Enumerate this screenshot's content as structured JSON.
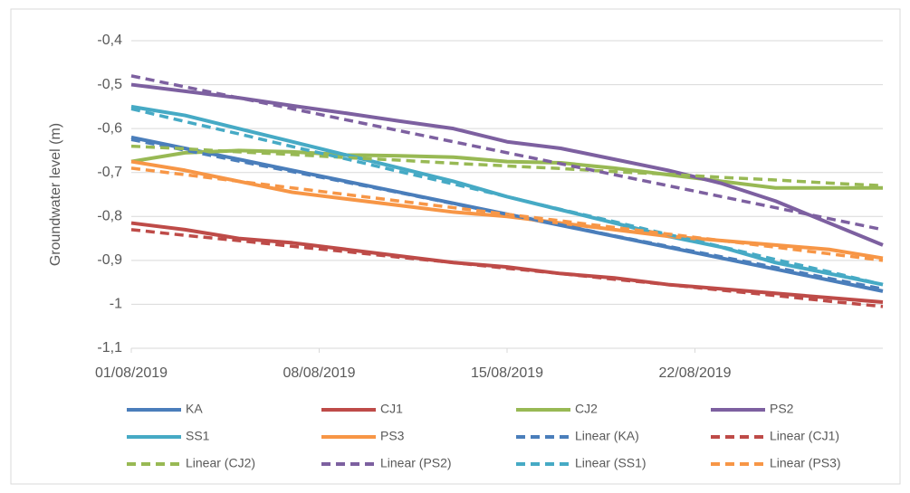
{
  "chart_data": {
    "type": "line",
    "y_label": "Groundwater level (m)",
    "x": [
      "2019-08-01",
      "2019-08-03",
      "2019-08-05",
      "2019-08-07",
      "2019-08-09",
      "2019-08-11",
      "2019-08-13",
      "2019-08-15",
      "2019-08-17",
      "2019-08-19",
      "2019-08-21",
      "2019-08-23",
      "2019-08-25",
      "2019-08-27",
      "2019-08-29"
    ],
    "xlim": [
      "2019-08-01",
      "2019-08-29"
    ],
    "xticks": [
      {
        "value": "2019-08-01",
        "label": "01/08/2019"
      },
      {
        "value": "2019-08-08",
        "label": "08/08/2019"
      },
      {
        "value": "2019-08-15",
        "label": "15/08/2019"
      },
      {
        "value": "2019-08-22",
        "label": "22/08/2019"
      }
    ],
    "ylim": [
      -1.1,
      -0.4
    ],
    "yticks": [
      {
        "value": -0.4,
        "label": "-0,4"
      },
      {
        "value": -0.5,
        "label": "-0,5"
      },
      {
        "value": -0.6,
        "label": "-0,6"
      },
      {
        "value": -0.7,
        "label": "-0,7"
      },
      {
        "value": -0.8,
        "label": "-0,8"
      },
      {
        "value": -0.9,
        "label": "-0,9"
      },
      -1,
      {
        "value": -1.1,
        "label": "-1,1"
      }
    ],
    "grid": true,
    "legend": "bottom",
    "series": [
      {
        "name": "KA",
        "color": "#4a7ebb",
        "dashed": false,
        "values": [
          -0.62,
          -0.645,
          -0.67,
          -0.695,
          -0.72,
          -0.745,
          -0.77,
          -0.795,
          -0.82,
          -0.845,
          -0.87,
          -0.895,
          -0.92,
          -0.945,
          -0.97
        ]
      },
      {
        "name": "CJ1",
        "color": "#be4b48",
        "dashed": false,
        "values": [
          -0.815,
          -0.83,
          -0.85,
          -0.86,
          -0.875,
          -0.89,
          -0.905,
          -0.915,
          -0.93,
          -0.94,
          -0.955,
          -0.965,
          -0.975,
          -0.985,
          -0.995
        ]
      },
      {
        "name": "CJ2",
        "color": "#98b954",
        "dashed": false,
        "values": [
          -0.675,
          -0.655,
          -0.65,
          -0.653,
          -0.66,
          -0.662,
          -0.665,
          -0.675,
          -0.678,
          -0.69,
          -0.705,
          -0.72,
          -0.735,
          -0.735,
          -0.735
        ]
      },
      {
        "name": "PS2",
        "color": "#7d60a0",
        "dashed": false,
        "values": [
          -0.5,
          -0.515,
          -0.53,
          -0.548,
          -0.565,
          -0.583,
          -0.6,
          -0.63,
          -0.645,
          -0.67,
          -0.695,
          -0.725,
          -0.765,
          -0.815,
          -0.865
        ]
      },
      {
        "name": "SS1",
        "color": "#46aac5",
        "dashed": false,
        "values": [
          -0.55,
          -0.57,
          -0.6,
          -0.63,
          -0.66,
          -0.69,
          -0.72,
          -0.755,
          -0.785,
          -0.815,
          -0.845,
          -0.87,
          -0.905,
          -0.93,
          -0.955
        ]
      },
      {
        "name": "PS3",
        "color": "#f79646",
        "dashed": false,
        "values": [
          -0.675,
          -0.695,
          -0.72,
          -0.745,
          -0.76,
          -0.775,
          -0.79,
          -0.8,
          -0.815,
          -0.83,
          -0.845,
          -0.855,
          -0.865,
          -0.875,
          -0.895
        ]
      },
      {
        "name": "Linear (KA)",
        "color": "#4a7ebb",
        "dashed": true,
        "values": [
          -0.625,
          -0.649,
          -0.674,
          -0.698,
          -0.722,
          -0.746,
          -0.771,
          -0.795,
          -0.819,
          -0.844,
          -0.868,
          -0.892,
          -0.916,
          -0.941,
          -0.965
        ]
      },
      {
        "name": "Linear (CJ1)",
        "color": "#be4b48",
        "dashed": true,
        "values": [
          -0.83,
          -0.843,
          -0.855,
          -0.868,
          -0.88,
          -0.893,
          -0.905,
          -0.918,
          -0.93,
          -0.943,
          -0.955,
          -0.968,
          -0.98,
          -0.993,
          -1.005
        ]
      },
      {
        "name": "Linear (CJ2)",
        "color": "#98b954",
        "dashed": true,
        "values": [
          -0.64,
          -0.646,
          -0.653,
          -0.659,
          -0.666,
          -0.672,
          -0.679,
          -0.685,
          -0.691,
          -0.698,
          -0.704,
          -0.711,
          -0.717,
          -0.724,
          -0.73
        ]
      },
      {
        "name": "Linear (PS2)",
        "color": "#7d60a0",
        "dashed": true,
        "values": [
          -0.48,
          -0.505,
          -0.53,
          -0.555,
          -0.58,
          -0.605,
          -0.63,
          -0.655,
          -0.68,
          -0.705,
          -0.73,
          -0.755,
          -0.78,
          -0.805,
          -0.83
        ]
      },
      {
        "name": "Linear (SS1)",
        "color": "#46aac5",
        "dashed": true,
        "values": [
          -0.555,
          -0.584,
          -0.612,
          -0.641,
          -0.669,
          -0.698,
          -0.726,
          -0.755,
          -0.784,
          -0.812,
          -0.841,
          -0.869,
          -0.898,
          -0.926,
          -0.955
        ]
      },
      {
        "name": "Linear (PS3)",
        "color": "#f79646",
        "dashed": true,
        "values": [
          -0.69,
          -0.705,
          -0.72,
          -0.735,
          -0.75,
          -0.765,
          -0.78,
          -0.795,
          -0.81,
          -0.825,
          -0.84,
          -0.855,
          -0.87,
          -0.885,
          -0.9
        ]
      }
    ]
  }
}
